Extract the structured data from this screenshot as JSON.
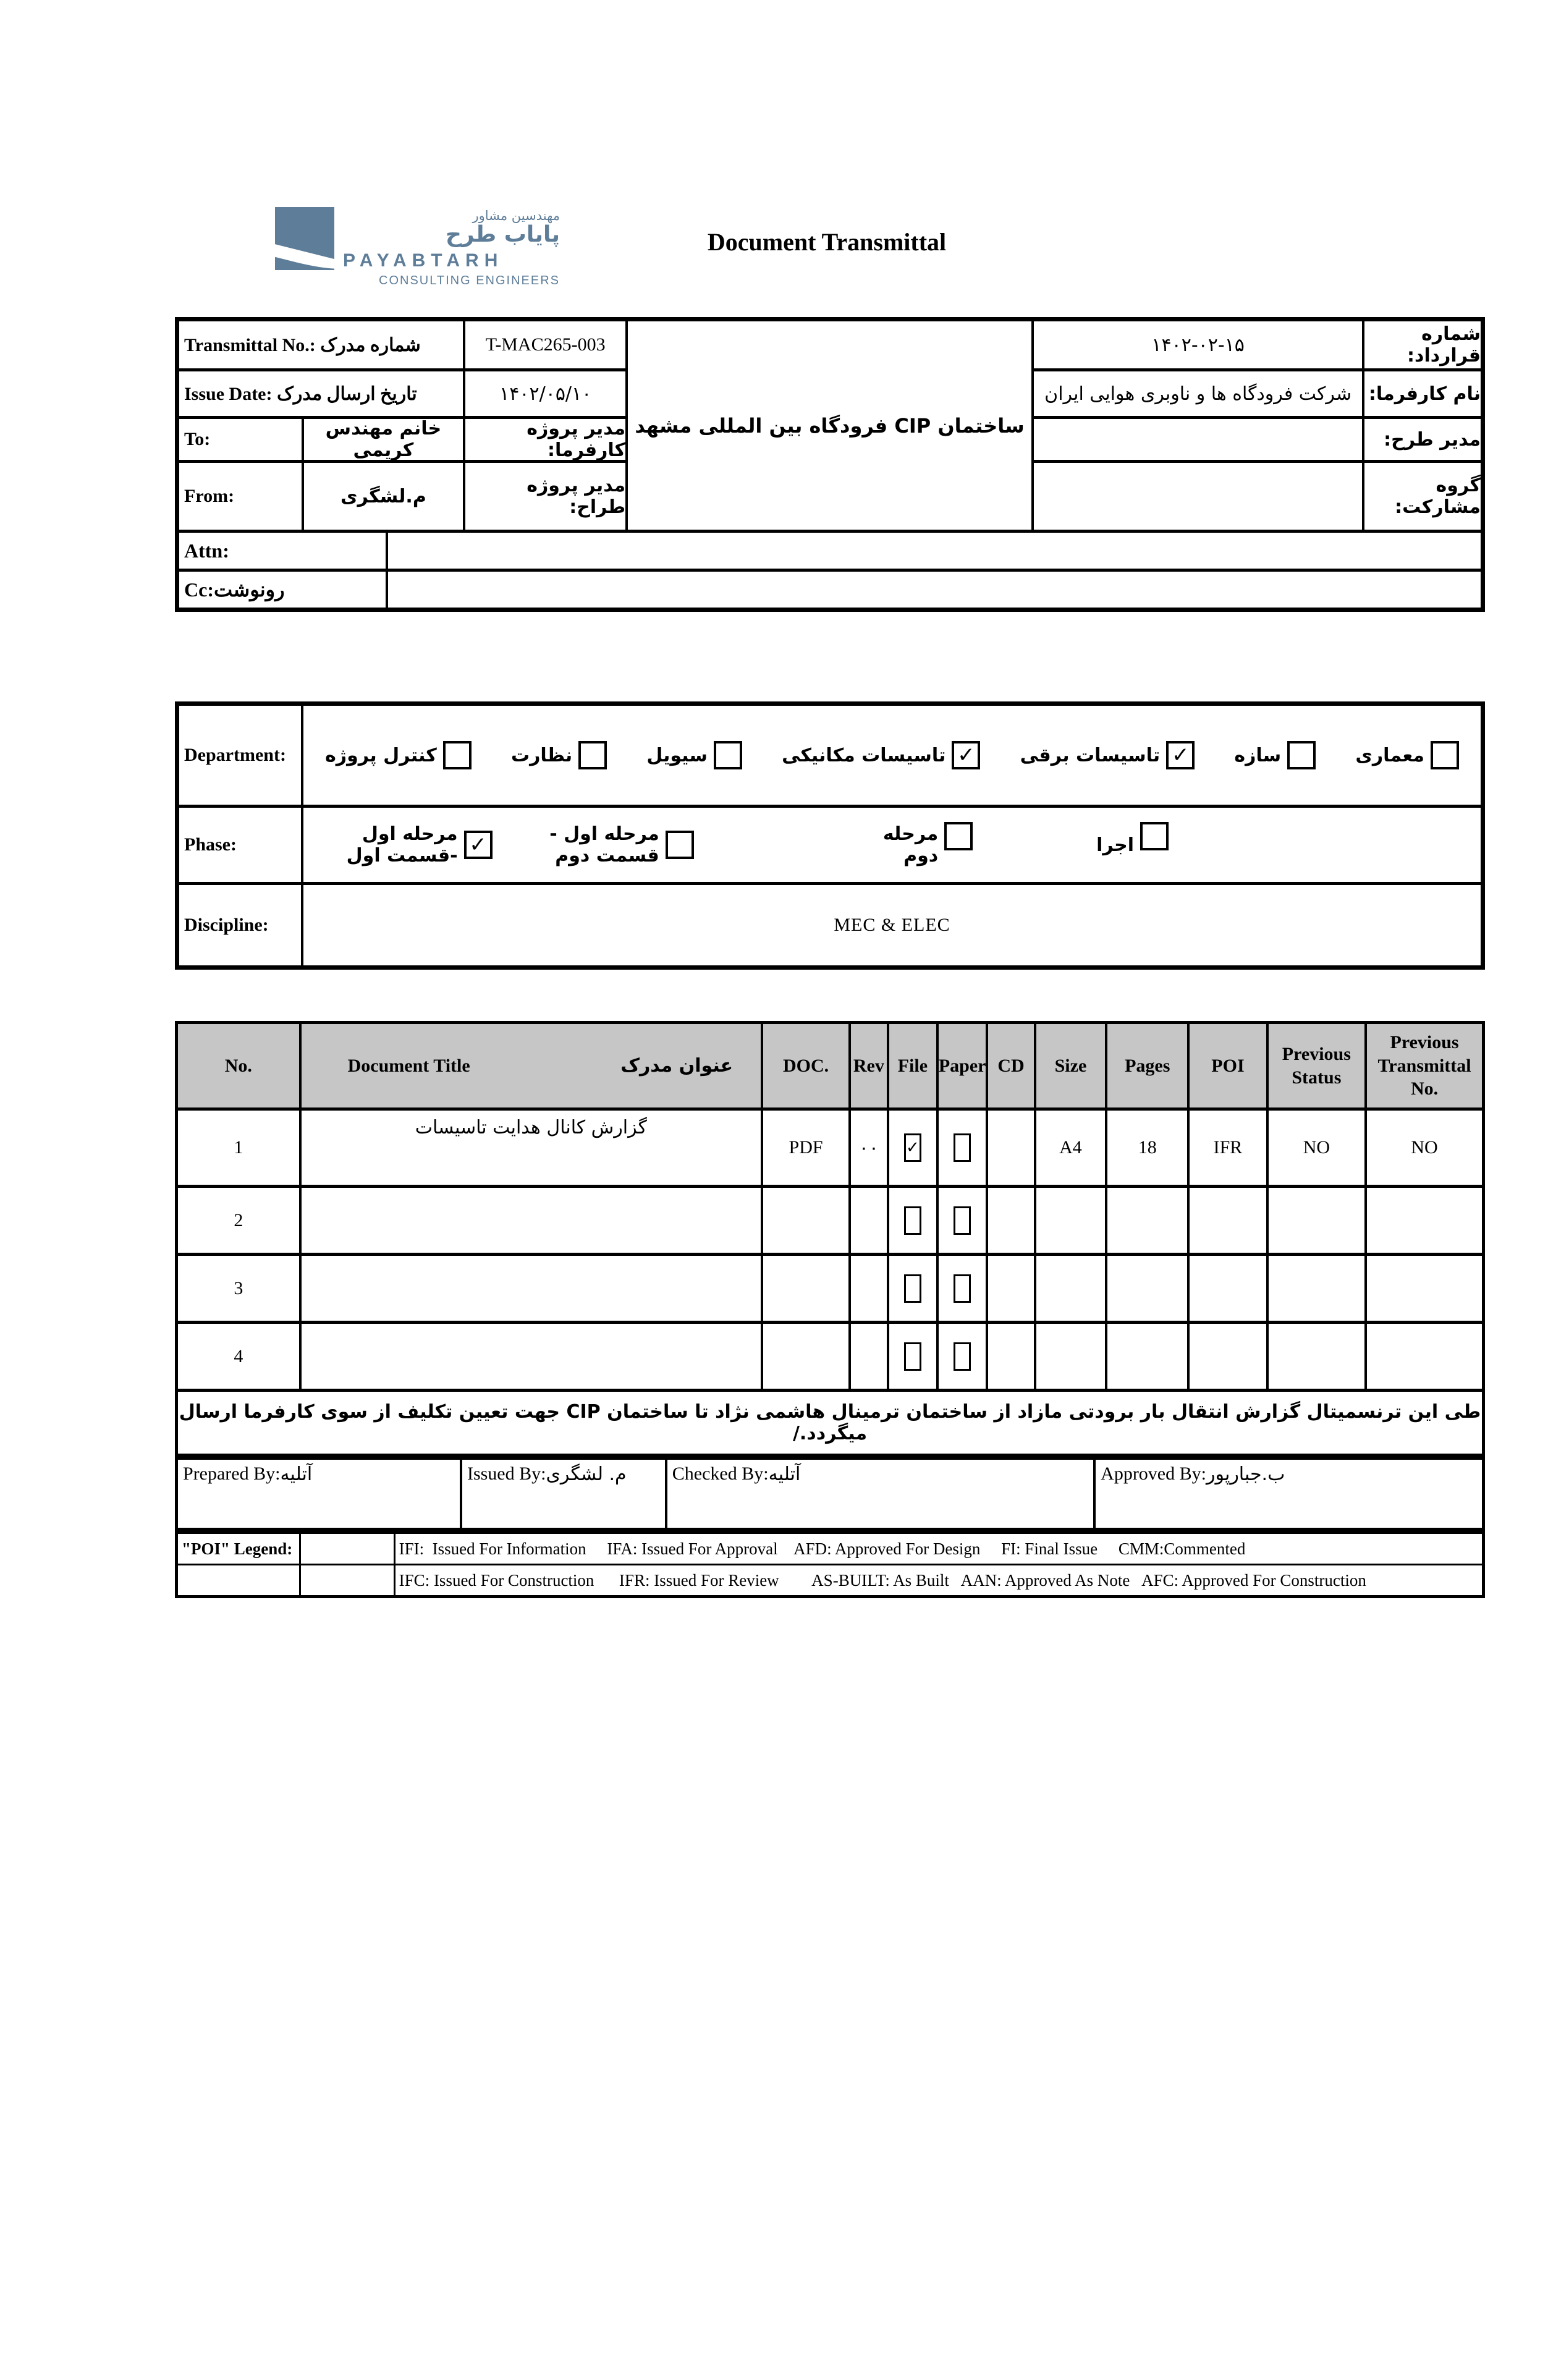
{
  "colors": {
    "accent": "#5e7d98",
    "table_header_gray": "#c6c6c6"
  },
  "logo": {
    "brand_fa_small": "مهندسین مشاور",
    "brand_fa": "پایاب طرح",
    "brand_en": "PAYABTARH",
    "brand_sub": "CONSULTING ENGINEERS"
  },
  "title": "Document Transmittal",
  "info": {
    "transmittal_label": "Transmittal No.: شماره مدرک",
    "transmittal_value": "T-MAC265-003",
    "issue_label": "Issue Date: تاریخ ارسال مدرک",
    "issue_value": "۱۴۰۲/۰۵/۱۰",
    "to_label": "To:",
    "to_value": "خانم مهندس کریمی",
    "client_pm_label": "مدیر پروژه کارفرما:",
    "from_label": "From:",
    "from_value": "م.لشگری",
    "designer_pm_label": "مدیر پروژه طراح:",
    "project_name": "ساختمان CIP فرودگاه بین المللی مشهد",
    "contract_no_label": "شماره قرارداد:",
    "contract_no_value": "۱۴۰۲-۰۲-۱۵",
    "client_label": "نام کارفرما:",
    "client_value": "شرکت فرودگاه ها و ناوبری هوایی ایران",
    "plan_manager_label": "مدیر طرح:",
    "plan_manager_value": "",
    "jv_group_label": "گروه مشارکت:",
    "jv_group_value": "",
    "attn_label": "Attn:",
    "attn_value": "",
    "cc_label": "Cc:رونوشت",
    "cc_value": ""
  },
  "department": {
    "label": "Department:",
    "items": [
      {
        "label": "معماری",
        "checked": false
      },
      {
        "label": "سازه",
        "checked": false
      },
      {
        "label": "تاسیسات برقی",
        "checked": true
      },
      {
        "label": "تاسیسات مکانیکی",
        "checked": true
      },
      {
        "label": "سیویل",
        "checked": false
      },
      {
        "label": "نظارت",
        "checked": false
      },
      {
        "label": "کنترل پروژه",
        "checked": false
      }
    ]
  },
  "phase": {
    "label": "Phase:",
    "items": [
      {
        "label": "اجرا",
        "checked": false
      },
      {
        "label": "مرحله دوم",
        "checked": false
      },
      {
        "label": "مرحله اول - قسمت دوم",
        "checked": false
      },
      {
        "label": "مرحله اول -قسمت اول",
        "checked": true
      }
    ]
  },
  "discipline": {
    "label": "Discipline:",
    "value": "MEC & ELEC"
  },
  "doc_table": {
    "headers": {
      "no": "No.",
      "title_en": "Document Title",
      "title_fa": "عنوان مدرک",
      "doc": "DOC.",
      "rev": "Rev",
      "file": "File",
      "paper": "Paper",
      "cd": "CD",
      "size": "Size",
      "pages": "Pages",
      "poi": "POI",
      "prev_status": "Previous Status",
      "prev_transmittal": "Previous Transmittal No."
    },
    "rows": [
      {
        "no": "1",
        "title": "گزارش کانال هدایت تاسیسات",
        "doc": "PDF",
        "rev": "۰۰",
        "file": true,
        "paper": false,
        "cd": "",
        "size": "A4",
        "pages": "18",
        "poi": "IFR",
        "prev_status": "NO",
        "prev_transmittal": "NO"
      },
      {
        "no": "2",
        "title": "",
        "doc": "",
        "rev": "",
        "file": false,
        "paper": false,
        "cd": "",
        "size": "",
        "pages": "",
        "poi": "",
        "prev_status": "",
        "prev_transmittal": ""
      },
      {
        "no": "3",
        "title": "",
        "doc": "",
        "rev": "",
        "file": false,
        "paper": false,
        "cd": "",
        "size": "",
        "pages": "",
        "poi": "",
        "prev_status": "",
        "prev_transmittal": ""
      },
      {
        "no": "4",
        "title": "",
        "doc": "",
        "rev": "",
        "file": false,
        "paper": false,
        "cd": "",
        "size": "",
        "pages": "",
        "poi": "",
        "prev_status": "",
        "prev_transmittal": ""
      }
    ]
  },
  "remarks": "طی این ترنسمیتال گزارش انتقال بار برودتی مازاد از ساختمان ترمینال هاشمی نژاد تا ساختمان CIP جهت تعیین تکلیف  از سوی کارفرما  ارسال میگردد./",
  "signatures": {
    "prepared_label": "Prepared By:",
    "prepared_value": "آتلیه",
    "issued_label": "Issued By:",
    "issued_value": "م. لشگری",
    "checked_label": "Checked By:",
    "checked_value": "آتلیه",
    "approved_label": "Approved By:",
    "approved_value": " ب.جبارپور"
  },
  "legend": {
    "label": "\"POI\" Legend:",
    "line1": "IFI:  Issued For Information     IFA: Issued For Approval    AFD: Approved For Design     FI: Final Issue     CMM:Commented",
    "line2": "IFC: Issued For Construction      IFR: Issued For Review        AS-BUILT: As Built   AAN: Approved As Note   AFC: Approved For Construction"
  }
}
